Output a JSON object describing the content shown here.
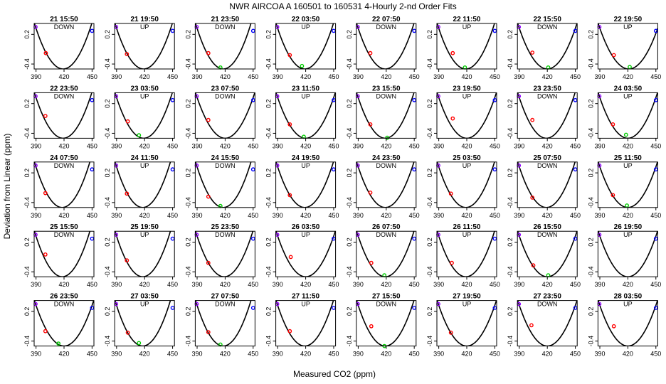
{
  "figure": {
    "title": "NWR   AIRCOA A   160501 to 160531   4-Hourly 2-nd Order Fits",
    "xlabel": "Measured CO2 (ppm)",
    "ylabel": "Deviation from Linear (ppm)"
  },
  "chart_data": {
    "type": "line",
    "title": "NWR   AIRCOA A   160501 to 160531   4-Hourly 2-nd Order Fits",
    "xlabel": "Measured CO2 (ppm)",
    "ylabel": "Deviation from Linear (ppm)",
    "xlim": [
      388,
      452
    ],
    "ylim": [
      -0.5,
      0.42
    ],
    "xticks": [
      "390",
      "420",
      "450"
    ],
    "yticks": [
      "-0.4",
      "0.2"
    ],
    "panels": [
      {
        "label": "21 15:50",
        "mode": "DOWN",
        "vertex_x": 419,
        "pts": [
          [
            389.5,
            0.35,
            "purple"
          ],
          [
            400.5,
            -0.18,
            "red"
          ],
          [
            450,
            0.27,
            "blue"
          ]
        ]
      },
      {
        "label": "21 19:50",
        "mode": "UP",
        "vertex_x": 419,
        "pts": [
          [
            389.5,
            0.35,
            "purple"
          ],
          [
            401,
            -0.2,
            "red"
          ],
          [
            450,
            0.27,
            "blue"
          ]
        ]
      },
      {
        "label": "21 23:50",
        "mode": "DOWN",
        "vertex_x": 418,
        "pts": [
          [
            389.5,
            0.35,
            "purple"
          ],
          [
            402,
            -0.18,
            "red"
          ],
          [
            415,
            -0.47,
            "green"
          ],
          [
            450,
            0.27,
            "blue"
          ]
        ]
      },
      {
        "label": "22 03:50",
        "mode": "UP",
        "vertex_x": 419,
        "pts": [
          [
            389.5,
            0.35,
            "purple"
          ],
          [
            403,
            -0.22,
            "red"
          ],
          [
            416,
            -0.44,
            "green"
          ],
          [
            450,
            0.27,
            "blue"
          ]
        ]
      },
      {
        "label": "22 07:50",
        "mode": "DOWN",
        "vertex_x": 419,
        "pts": [
          [
            389.5,
            0.35,
            "purple"
          ],
          [
            403,
            -0.18,
            "red"
          ],
          [
            450,
            0.27,
            "blue"
          ]
        ]
      },
      {
        "label": "22 11:50",
        "mode": "UP",
        "vertex_x": 419,
        "pts": [
          [
            389.5,
            0.35,
            "purple"
          ],
          [
            405,
            -0.18,
            "red"
          ],
          [
            418,
            -0.47,
            "green"
          ],
          [
            450,
            0.27,
            "blue"
          ]
        ]
      },
      {
        "label": "22 15:50",
        "mode": "DOWN",
        "vertex_x": 420,
        "pts": [
          [
            389.5,
            0.35,
            "purple"
          ],
          [
            404,
            -0.17,
            "red"
          ],
          [
            421,
            -0.47,
            "green"
          ],
          [
            450,
            0.27,
            "blue"
          ]
        ]
      },
      {
        "label": "22 19:50",
        "mode": "UP",
        "vertex_x": 421,
        "pts": [
          [
            389.5,
            0.35,
            "purple"
          ],
          [
            405,
            -0.22,
            "red"
          ],
          [
            422,
            -0.46,
            "green"
          ],
          [
            450,
            0.27,
            "blue"
          ]
        ]
      },
      {
        "label": "22 23:50",
        "mode": "DOWN",
        "vertex_x": 419,
        "pts": [
          [
            389.5,
            0.35,
            "purple"
          ],
          [
            400,
            -0.05,
            "red"
          ],
          [
            450,
            0.27,
            "blue"
          ]
        ]
      },
      {
        "label": "23 03:50",
        "mode": "UP",
        "vertex_x": 419,
        "pts": [
          [
            389.5,
            0.35,
            "purple"
          ],
          [
            402,
            -0.16,
            "red"
          ],
          [
            414,
            -0.44,
            "green"
          ],
          [
            450,
            0.27,
            "blue"
          ]
        ]
      },
      {
        "label": "23 07:50",
        "mode": "DOWN",
        "vertex_x": 420,
        "pts": [
          [
            389.5,
            0.35,
            "purple"
          ],
          [
            402,
            -0.13,
            "red"
          ],
          [
            450,
            0.27,
            "blue"
          ]
        ]
      },
      {
        "label": "23 11:50",
        "mode": "UP",
        "vertex_x": 420,
        "pts": [
          [
            389.5,
            0.35,
            "purple"
          ],
          [
            403,
            -0.22,
            "red"
          ],
          [
            418,
            -0.47,
            "green"
          ],
          [
            450,
            0.27,
            "blue"
          ]
        ]
      },
      {
        "label": "23 15:50",
        "mode": "DOWN",
        "vertex_x": 419,
        "pts": [
          [
            389.5,
            0.35,
            "purple"
          ],
          [
            403,
            -0.22,
            "red"
          ],
          [
            421,
            -0.49,
            "green"
          ],
          [
            450,
            0.27,
            "blue"
          ]
        ]
      },
      {
        "label": "23 19:50",
        "mode": "UP",
        "vertex_x": 420,
        "pts": [
          [
            389.5,
            0.35,
            "purple"
          ],
          [
            405,
            -0.1,
            "red"
          ],
          [
            450,
            0.27,
            "blue"
          ]
        ]
      },
      {
        "label": "23 23:50",
        "mode": "DOWN",
        "vertex_x": 419,
        "pts": [
          [
            389.5,
            0.35,
            "purple"
          ],
          [
            404,
            -0.13,
            "red"
          ],
          [
            450,
            0.27,
            "blue"
          ]
        ]
      },
      {
        "label": "24 03:50",
        "mode": "UP",
        "vertex_x": 420,
        "pts": [
          [
            389.5,
            0.35,
            "purple"
          ],
          [
            404,
            -0.22,
            "red"
          ],
          [
            418,
            -0.43,
            "green"
          ],
          [
            450,
            0.27,
            "blue"
          ]
        ]
      },
      {
        "label": "24 07:50",
        "mode": "DOWN",
        "vertex_x": 418,
        "pts": [
          [
            389.5,
            0.35,
            "purple"
          ],
          [
            400,
            -0.21,
            "red"
          ],
          [
            450,
            0.27,
            "blue"
          ]
        ]
      },
      {
        "label": "24 11:50",
        "mode": "UP",
        "vertex_x": 418,
        "pts": [
          [
            389.5,
            0.35,
            "purple"
          ],
          [
            401,
            -0.22,
            "red"
          ],
          [
            450,
            0.27,
            "blue"
          ]
        ]
      },
      {
        "label": "24 15:50",
        "mode": "DOWN",
        "vertex_x": 418,
        "pts": [
          [
            389.5,
            0.35,
            "purple"
          ],
          [
            402,
            -0.28,
            "red"
          ],
          [
            415,
            -0.47,
            "green"
          ],
          [
            450,
            0.27,
            "blue"
          ]
        ]
      },
      {
        "label": "24 19:50",
        "mode": "UP",
        "vertex_x": 419,
        "pts": [
          [
            389.5,
            0.35,
            "purple"
          ],
          [
            403,
            -0.25,
            "red"
          ],
          [
            450,
            0.27,
            "blue"
          ]
        ]
      },
      {
        "label": "24 23:50",
        "mode": "DOWN",
        "vertex_x": 419,
        "pts": [
          [
            389.5,
            0.35,
            "purple"
          ],
          [
            403,
            -0.2,
            "red"
          ],
          [
            450,
            0.27,
            "blue"
          ]
        ]
      },
      {
        "label": "25 03:50",
        "mode": "UP",
        "vertex_x": 419,
        "pts": [
          [
            389.5,
            0.35,
            "purple"
          ],
          [
            403,
            -0.22,
            "red"
          ],
          [
            450,
            0.27,
            "blue"
          ]
        ]
      },
      {
        "label": "25 07:50",
        "mode": "DOWN",
        "vertex_x": 419,
        "pts": [
          [
            389.5,
            0.35,
            "purple"
          ],
          [
            404,
            -0.3,
            "red"
          ],
          [
            450,
            0.27,
            "blue"
          ]
        ]
      },
      {
        "label": "25 11:50",
        "mode": "UP",
        "vertex_x": 420,
        "pts": [
          [
            389.5,
            0.35,
            "purple"
          ],
          [
            404,
            -0.25,
            "red"
          ],
          [
            419,
            -0.46,
            "green"
          ],
          [
            450,
            0.27,
            "blue"
          ]
        ]
      },
      {
        "label": "25 15:50",
        "mode": "DOWN",
        "vertex_x": 418,
        "pts": [
          [
            389.5,
            0.35,
            "purple"
          ],
          [
            400,
            -0.05,
            "red"
          ],
          [
            450,
            0.27,
            "blue"
          ]
        ]
      },
      {
        "label": "25 19:50",
        "mode": "UP",
        "vertex_x": 418,
        "pts": [
          [
            389.5,
            0.35,
            "purple"
          ],
          [
            401,
            -0.17,
            "red"
          ],
          [
            450,
            0.27,
            "blue"
          ]
        ]
      },
      {
        "label": "25 23:50",
        "mode": "DOWN",
        "vertex_x": 419,
        "pts": [
          [
            389.5,
            0.35,
            "purple"
          ],
          [
            402,
            -0.22,
            "red"
          ],
          [
            450,
            0.27,
            "blue"
          ]
        ]
      },
      {
        "label": "26 03:50",
        "mode": "UP",
        "vertex_x": 420,
        "pts": [
          [
            389.5,
            0.35,
            "purple"
          ],
          [
            404,
            -0.1,
            "red"
          ],
          [
            450,
            0.27,
            "blue"
          ]
        ]
      },
      {
        "label": "26 07:50",
        "mode": "DOWN",
        "vertex_x": 419,
        "pts": [
          [
            389.5,
            0.35,
            "purple"
          ],
          [
            404,
            -0.22,
            "red"
          ],
          [
            418,
            -0.47,
            "green"
          ],
          [
            450,
            0.27,
            "blue"
          ]
        ]
      },
      {
        "label": "26 11:50",
        "mode": "UP",
        "vertex_x": 419,
        "pts": [
          [
            389.5,
            0.35,
            "purple"
          ],
          [
            404,
            -0.22,
            "red"
          ],
          [
            450,
            0.27,
            "blue"
          ]
        ]
      },
      {
        "label": "26 15:50",
        "mode": "DOWN",
        "vertex_x": 420,
        "pts": [
          [
            389.5,
            0.35,
            "purple"
          ],
          [
            405,
            -0.27,
            "red"
          ],
          [
            421,
            -0.47,
            "green"
          ],
          [
            450,
            0.27,
            "blue"
          ]
        ]
      },
      {
        "label": "26 19:50",
        "mode": "UP",
        "vertex_x": 420,
        "pts": [
          [
            389.5,
            0.35,
            "purple"
          ],
          [
            450,
            0.27,
            "blue"
          ]
        ]
      },
      {
        "label": "26 23:50",
        "mode": "DOWN",
        "vertex_x": 420,
        "pts": [
          [
            389.5,
            0.35,
            "purple"
          ],
          [
            400,
            -0.2,
            "red"
          ],
          [
            414,
            -0.45,
            "green"
          ],
          [
            450,
            0.27,
            "blue"
          ]
        ]
      },
      {
        "label": "27 03:50",
        "mode": "UP",
        "vertex_x": 418,
        "pts": [
          [
            389.5,
            0.35,
            "purple"
          ],
          [
            402,
            -0.23,
            "red"
          ],
          [
            414,
            -0.44,
            "green"
          ],
          [
            450,
            0.27,
            "blue"
          ]
        ]
      },
      {
        "label": "27 07:50",
        "mode": "DOWN",
        "vertex_x": 418,
        "pts": [
          [
            389.5,
            0.35,
            "purple"
          ],
          [
            402,
            -0.22,
            "red"
          ],
          [
            415,
            -0.47,
            "green"
          ],
          [
            450,
            0.27,
            "blue"
          ]
        ]
      },
      {
        "label": "27 11:50",
        "mode": "UP",
        "vertex_x": 419,
        "pts": [
          [
            389.5,
            0.35,
            "purple"
          ],
          [
            403,
            -0.2,
            "red"
          ],
          [
            450,
            0.27,
            "blue"
          ]
        ]
      },
      {
        "label": "27 15:50",
        "mode": "DOWN",
        "vertex_x": 419,
        "pts": [
          [
            389.5,
            0.35,
            "purple"
          ],
          [
            404,
            -0.1,
            "red"
          ],
          [
            418,
            -0.5,
            "green"
          ],
          [
            450,
            0.27,
            "blue"
          ]
        ]
      },
      {
        "label": "27 19:50",
        "mode": "UP",
        "vertex_x": 420,
        "pts": [
          [
            389.5,
            0.35,
            "purple"
          ],
          [
            403,
            -0.23,
            "red"
          ],
          [
            450,
            0.27,
            "blue"
          ]
        ]
      },
      {
        "label": "27 23:50",
        "mode": "DOWN",
        "vertex_x": 420,
        "pts": [
          [
            389.5,
            0.35,
            "purple"
          ],
          [
            403,
            -0.08,
            "red"
          ],
          [
            450,
            0.27,
            "blue"
          ]
        ]
      },
      {
        "label": "28 03:50",
        "mode": "UP",
        "vertex_x": 420,
        "pts": [
          [
            389.5,
            0.35,
            "purple"
          ],
          [
            405,
            -0.1,
            "red"
          ],
          [
            450,
            0.27,
            "blue"
          ]
        ]
      }
    ]
  },
  "colors": {
    "purple": "#9000ff",
    "red": "#ff0000",
    "green": "#00cc00",
    "blue": "#0000ff",
    "curve": "#000000"
  }
}
